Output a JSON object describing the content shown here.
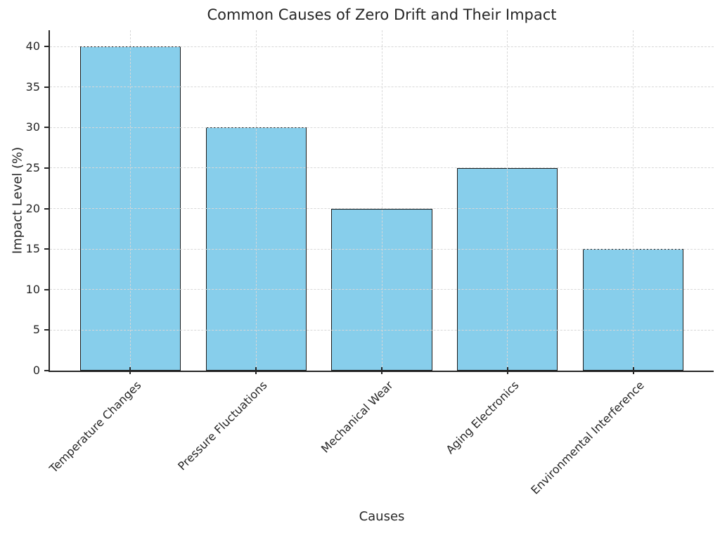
{
  "chart_data": {
    "type": "bar",
    "title": "Common Causes of Zero Drift and Their Impact",
    "xlabel": "Causes",
    "ylabel": "Impact Level (%)",
    "categories": [
      "Temperature Changes",
      "Pressure Fluctuations",
      "Mechanical Wear",
      "Aging Electronics",
      "Environmental Interference"
    ],
    "values": [
      40,
      30,
      20,
      25,
      15
    ],
    "ylim": [
      0,
      42
    ],
    "yticks": [
      0,
      5,
      10,
      15,
      20,
      25,
      30,
      35,
      40
    ],
    "xlim_units": [
      -0.64,
      4.64
    ],
    "bar_width_units": 0.8,
    "grid": "dashed, horizontal and vertical, drawn above bars",
    "legend": "none",
    "bar_color": "#87CEEB",
    "bar_edge_color": "#1a1a1a",
    "grid_color": "#d8d8d8",
    "axis_color": "#262626",
    "text_color": "#262626"
  }
}
